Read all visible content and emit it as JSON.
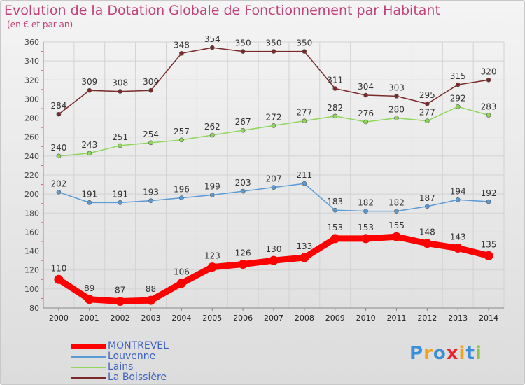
{
  "chart_data": {
    "type": "line",
    "title": "Evolution de la Dotation Globale de Fonctionnement par Habitant",
    "subtitle": "(en € et par an)",
    "xlabel": "",
    "ylabel": "",
    "x": [
      "2000",
      "2001",
      "2002",
      "2003",
      "2004",
      "2005",
      "2006",
      "2007",
      "2008",
      "2009",
      "2010",
      "2011",
      "2012",
      "2013",
      "2014"
    ],
    "ylim": [
      80,
      360
    ],
    "yticks": [
      "80",
      "100",
      "120",
      "140",
      "160",
      "180",
      "200",
      "220",
      "240",
      "260",
      "280",
      "300",
      "320",
      "340",
      "360"
    ],
    "grid": true,
    "legend_position": "bottom-left",
    "series": [
      {
        "name": "MONTREVEL",
        "color": "#ff0000",
        "values": [
          110,
          89,
          87,
          88,
          106,
          123,
          126,
          130,
          133,
          153,
          153,
          155,
          148,
          143,
          135
        ]
      },
      {
        "name": "Louvenne",
        "color": "#5a9bd5",
        "values": [
          202,
          191,
          191,
          193,
          196,
          199,
          203,
          207,
          211,
          183,
          182,
          182,
          187,
          194,
          192
        ]
      },
      {
        "name": "Lains",
        "color": "#8fd65a",
        "values": [
          240,
          243,
          251,
          254,
          257,
          262,
          267,
          272,
          277,
          282,
          276,
          280,
          277,
          292,
          283
        ]
      },
      {
        "name": "La Boissière",
        "color": "#7a2a2a",
        "values": [
          284,
          309,
          308,
          309,
          348,
          354,
          350,
          350,
          350,
          311,
          304,
          303,
          295,
          315,
          320
        ]
      }
    ]
  },
  "logo": {
    "letters": [
      "P",
      "r",
      "o",
      "x",
      "i",
      "t",
      "i"
    ],
    "colors": [
      "#3b8ed8",
      "#f2a21a",
      "#3b8ed8",
      "#e8262e",
      "#f2a21a",
      "#3b8ed8",
      "#8cc63f"
    ]
  }
}
